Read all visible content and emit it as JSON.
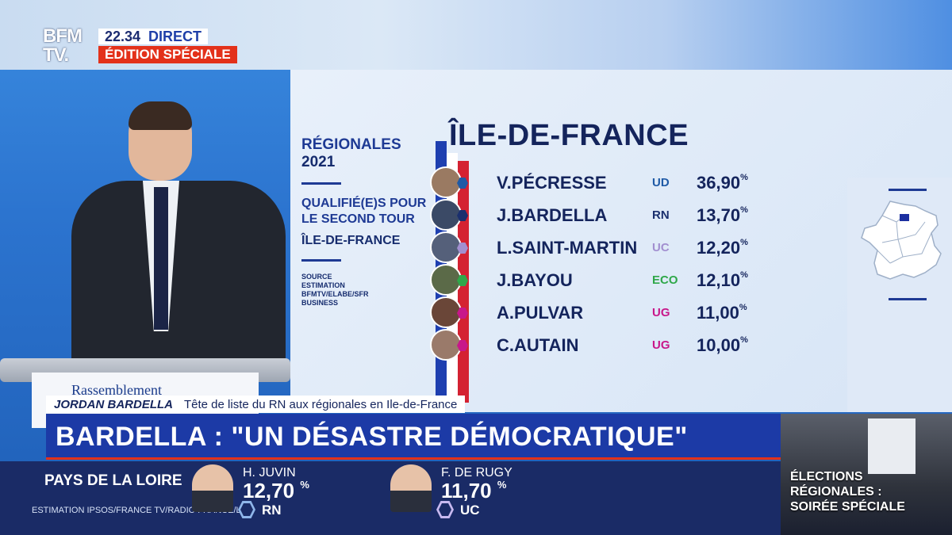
{
  "broadcast": {
    "logo_line1": "BFM",
    "logo_line2": "TV.",
    "time": "22.34",
    "live_label": "DIRECT",
    "edition_label": "ÉDITION SPÉCIALE"
  },
  "backdrop": {
    "podium_text": "Rassemblement"
  },
  "results_panel": {
    "election_label": "RÉGIONALES",
    "year": "2021",
    "qualified_line1": "QUALIFIÉ(E)S POUR",
    "qualified_line2": "LE SECOND TOUR",
    "region_small": "ÎLE-DE-FRANCE",
    "source_lines": [
      "SOURCE",
      "ESTIMATION",
      "BFMTV/ELABE/SFR",
      "BUSINESS"
    ],
    "region_title": "ÎLE-DE-FRANCE",
    "percent_sign": "%",
    "candidates": [
      {
        "name": "V.PÉCRESSE",
        "party": "UD",
        "score": "36,90",
        "party_color": "#1f5aa6",
        "avatar_color": "#9a7a62"
      },
      {
        "name": "J.BARDELLA",
        "party": "RN",
        "score": "13,70",
        "party_color": "#1a2f6e",
        "avatar_color": "#3b4a66"
      },
      {
        "name": "L.SAINT-MARTIN",
        "party": "UC",
        "score": "12,20",
        "party_color": "#a28fd0",
        "avatar_color": "#55607a"
      },
      {
        "name": "J.BAYOU",
        "party": "ECO",
        "score": "12,10",
        "party_color": "#2fa84a",
        "avatar_color": "#5b6a48"
      },
      {
        "name": "A.PULVAR",
        "party": "UG",
        "score": "11,00",
        "party_color": "#c8178a",
        "avatar_color": "#6a4638"
      },
      {
        "name": "C.AUTAIN",
        "party": "UG",
        "score": "10,00",
        "party_color": "#c8178a",
        "avatar_color": "#9a7a6a"
      }
    ]
  },
  "lower_third": {
    "speaker_name": "JORDAN BARDELLA",
    "speaker_role": "Tête de liste du RN aux régionales en Ile-de-France",
    "headline": "BARDELLA : \"UN DÉSASTRE DÉMOCRATIQUE\""
  },
  "ticker": {
    "region": "PAYS DE LA LOIRE",
    "source": "ESTIMATION IPSOS/FRANCE TV/RADIO FRANCE/LCP",
    "candidates": [
      {
        "name": "H. JUVIN",
        "score": "12,70",
        "party": "RN",
        "hex_color": "#8fb6ea"
      },
      {
        "name": "F. DE RUGY",
        "score": "11,70",
        "party": "UC",
        "hex_color": "#c7b9f0"
      }
    ],
    "percent_sign": "%"
  },
  "promo": {
    "line1": "ÉLECTIONS",
    "line2": "RÉGIONALES :",
    "line3": "SOIRÉE SPÉCIALE"
  }
}
